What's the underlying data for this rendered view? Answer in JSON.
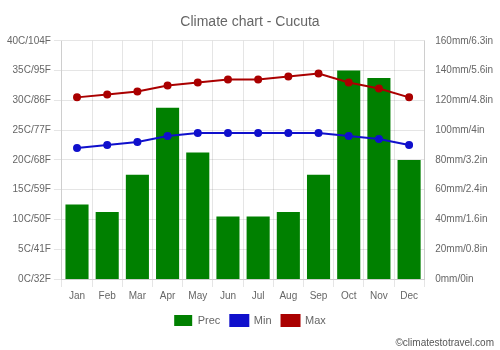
{
  "chart_data": {
    "type": "bar",
    "title": "Climate chart - Cucuta",
    "categories": [
      "Jan",
      "Feb",
      "Mar",
      "Apr",
      "May",
      "Jun",
      "Jul",
      "Aug",
      "Sep",
      "Oct",
      "Nov",
      "Dec"
    ],
    "series": [
      {
        "name": "Prec",
        "type": "bar",
        "color": "#008000",
        "axis": "y2",
        "values": [
          50,
          45,
          70,
          115,
          85,
          42,
          42,
          45,
          70,
          140,
          135,
          80
        ]
      },
      {
        "name": "Min",
        "type": "line",
        "color": "#1010cc",
        "marker": "circle",
        "values": [
          22,
          22.5,
          23,
          24,
          24.5,
          24.5,
          24.5,
          24.5,
          24.5,
          24,
          23.5,
          22.5
        ]
      },
      {
        "name": "Max",
        "type": "line",
        "color": "#aa0000",
        "marker": "circle",
        "values": [
          30.5,
          31,
          31.5,
          32.5,
          33,
          33.5,
          33.5,
          34,
          34.5,
          33,
          32,
          30.5
        ]
      }
    ],
    "ylim": [
      0,
      40
    ],
    "yticks": [
      {
        "value": 0,
        "label": "0C/32F"
      },
      {
        "value": 5,
        "label": "5C/41F"
      },
      {
        "value": 10,
        "label": "10C/50F"
      },
      {
        "value": 15,
        "label": "15C/59F"
      },
      {
        "value": 20,
        "label": "20C/68F"
      },
      {
        "value": 25,
        "label": "25C/77F"
      },
      {
        "value": 30,
        "label": "30C/86F"
      },
      {
        "value": 35,
        "label": "35C/95F"
      },
      {
        "value": 40,
        "label": "40C/104F"
      }
    ],
    "y2lim": [
      0,
      160
    ],
    "y2ticks": [
      {
        "value": 0,
        "label": "0mm/0in"
      },
      {
        "value": 20,
        "label": "20mm/0.8in"
      },
      {
        "value": 40,
        "label": "40mm/1.6in"
      },
      {
        "value": 60,
        "label": "60mm/2.4in"
      },
      {
        "value": 80,
        "label": "80mm/3.2in"
      },
      {
        "value": 100,
        "label": "100mm/4in"
      },
      {
        "value": 120,
        "label": "120mm/4.8in"
      },
      {
        "value": 140,
        "label": "140mm/5.6in"
      },
      {
        "value": 160,
        "label": "160mm/6.3in"
      }
    ],
    "grid": true,
    "legend": "bottom",
    "annotation": "©climatestotravel.com"
  }
}
